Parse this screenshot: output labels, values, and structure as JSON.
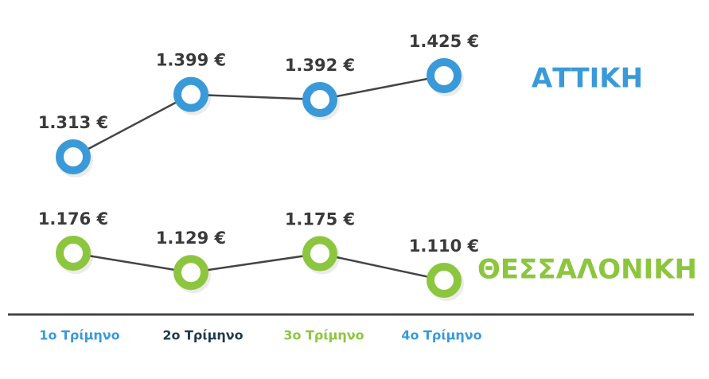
{
  "chart_data": {
    "type": "line",
    "categories": [
      "1ο Τρίμηνο",
      "2ο Τρίμηνο",
      "3ο Τρίμηνο",
      "4ο Τρίμηνο"
    ],
    "category_colors": [
      "#3a9ad9",
      "#1f3a4d",
      "#8cc63f",
      "#3a9ad9"
    ],
    "line_color": "#444444",
    "series": [
      {
        "name": "ΑΤΤΙΚΗ",
        "color": "#3a9ad9",
        "values": [
          1313,
          1399,
          1392,
          1425
        ],
        "value_labels": [
          "1.313 €",
          "1.399 €",
          "1.392 €",
          "1.425 €"
        ]
      },
      {
        "name": "ΘΕΣΣΑΛΟΝΙΚΗ",
        "color": "#8cc63f",
        "values": [
          1176,
          1129,
          1175,
          1110
        ],
        "value_labels": [
          "1.176 €",
          "1.129 €",
          "1.175 €",
          "1.110 €"
        ]
      }
    ]
  }
}
